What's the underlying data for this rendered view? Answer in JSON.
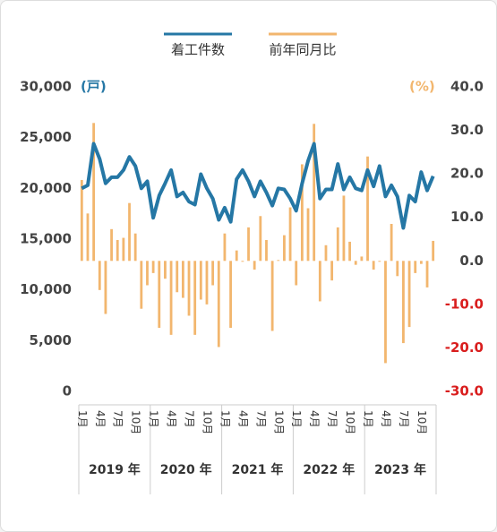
{
  "chart_data": {
    "type": "line-bar",
    "legend": [
      "着工件数",
      "前年同月比"
    ],
    "y_unit": "(戸)",
    "y2_unit": "(%)",
    "categories": [
      "1月",
      null,
      null,
      "4月",
      null,
      null,
      "7月",
      null,
      null,
      "10月",
      null,
      null,
      "1月",
      null,
      null,
      "4月",
      null,
      null,
      "7月",
      null,
      null,
      "10月",
      null,
      null,
      "1月",
      null,
      null,
      "4月",
      null,
      null,
      "7月",
      null,
      null,
      "10月",
      null,
      null,
      "1月",
      null,
      null,
      "4月",
      null,
      null,
      "7月",
      null,
      null,
      "10月",
      null,
      null,
      "1月",
      null,
      null,
      "4月",
      null,
      null,
      "7月",
      null,
      null,
      "10月",
      null,
      null
    ],
    "year_groups": [
      "2019 年",
      "2020 年",
      "2021 年",
      "2022 年",
      "2023 年"
    ],
    "series": [
      {
        "name": "着工件数",
        "type": "line",
        "color": "#2577a5",
        "values": [
          20000,
          20300,
          24400,
          22900,
          20500,
          21100,
          21100,
          21800,
          23100,
          22200,
          20000,
          20700,
          17100,
          19300,
          20500,
          21800,
          19200,
          19600,
          18700,
          18400,
          21400,
          20000,
          19000,
          16900,
          18100,
          16700,
          20900,
          21800,
          20700,
          19200,
          20700,
          19600,
          18300,
          20000,
          19900,
          19000,
          17800,
          20500,
          22700,
          24400,
          19000,
          19900,
          19900,
          22400,
          19900,
          21100,
          20000,
          19800,
          21800,
          20200,
          22200,
          19200,
          20300,
          19200,
          16100,
          19300,
          18700,
          21600,
          19800,
          21200
        ]
      },
      {
        "name": "前年同月比",
        "type": "bar",
        "axis": "y2",
        "color": "#f2b66e",
        "values": [
          18.6,
          10.9,
          31.7,
          -6.7,
          -12.2,
          7.3,
          4.8,
          5.3,
          13.3,
          6.3,
          -11,
          -5.6,
          -2.8,
          -15.4,
          -4.1,
          -17,
          -7.2,
          -8.5,
          -12.6,
          -17,
          -8.9,
          -10,
          -5.6,
          -19.8,
          6.3,
          -15.4,
          2.4,
          -0.2,
          7.7,
          -2,
          10.3,
          4.8,
          -16.1,
          0.2,
          5.9,
          12.3,
          -5.6,
          22.2,
          12.1,
          31.5,
          -9.3,
          3.6,
          -4.5,
          7.7,
          15,
          4.4,
          -0.9,
          1,
          24,
          -2,
          -0.2,
          -23.5,
          8.5,
          -3.5,
          -18.9,
          -15.2,
          -2.8,
          -0.7,
          -6.1,
          4.6
        ]
      }
    ],
    "ylim": [
      0,
      30000
    ],
    "yticks": [
      {
        "value": 0,
        "label": "0"
      },
      {
        "value": 5000,
        "label": "5,000"
      },
      {
        "value": 10000,
        "label": "10,000"
      },
      {
        "value": 15000,
        "label": "15,000"
      },
      {
        "value": 20000,
        "label": "20,000"
      },
      {
        "value": 25000,
        "label": "25,000"
      },
      {
        "value": 30000,
        "label": "30,000"
      }
    ],
    "y2lim": [
      -30,
      40
    ],
    "y2ticks": [
      {
        "value": -30,
        "label": "-30.0"
      },
      {
        "value": -20,
        "label": "-20.0"
      },
      {
        "value": -10,
        "label": "-10.0"
      },
      {
        "value": 0,
        "label": "0.0"
      },
      {
        "value": 10,
        "label": "10.0"
      },
      {
        "value": 20,
        "label": "20.0"
      },
      {
        "value": 30,
        "label": "30.0"
      },
      {
        "value": 40,
        "label": "40.0"
      }
    ],
    "negative_tick_color": "#d91e1e",
    "tick_color": "#444444"
  }
}
